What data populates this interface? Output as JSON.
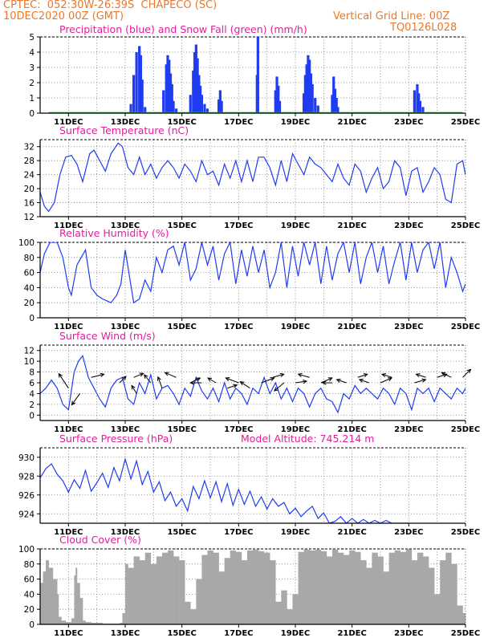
{
  "header": {
    "line1": "CPTEC:  052:30W-26:39S  CHAPECO (SC)",
    "line2": "10DEC2020 00Z (GMT)",
    "grid_note": "Vertical Grid Line: 00Z",
    "code": "TQ0126L028"
  },
  "chart_data": [
    {
      "id": "precip",
      "type": "bar",
      "title": "Precipitation (blue) and Snow Fall (green) (mm/h)",
      "ylim": [
        0,
        5
      ],
      "yticks": [
        0,
        1,
        2,
        3,
        4,
        5
      ],
      "x_tick_labels": [
        "11DEC",
        "13DEC",
        "15DEC",
        "17DEC",
        "19DEC",
        "21DEC",
        "23DEC",
        "25DEC"
      ],
      "x_range_days": [
        10,
        25
      ],
      "grid": "dotted",
      "colors": {
        "precip": "#1f3cf0",
        "snow": "#20c040"
      },
      "series": [
        {
          "name": "Precipitation",
          "x": [
            13.2,
            13.3,
            13.4,
            13.5,
            13.55,
            13.6,
            13.7,
            14.35,
            14.45,
            14.5,
            14.55,
            14.6,
            14.65,
            14.7,
            14.8,
            15.3,
            15.4,
            15.45,
            15.5,
            15.55,
            15.6,
            15.65,
            15.7,
            15.8,
            15.9,
            16.3,
            16.35,
            16.4,
            17.65,
            17.68,
            18.3,
            18.35,
            18.4,
            18.45,
            19.3,
            19.35,
            19.4,
            19.45,
            19.5,
            19.55,
            19.6,
            19.7,
            19.8,
            20.3,
            20.35,
            20.4,
            20.45,
            20.5,
            23.2,
            23.3,
            23.35,
            23.4,
            23.5
          ],
          "values": [
            0.6,
            2.5,
            4.0,
            4.4,
            3.8,
            2.2,
            0.4,
            1.5,
            3.2,
            3.8,
            3.5,
            2.6,
            1.9,
            0.8,
            0.3,
            1.2,
            2.8,
            4.0,
            4.5,
            3.6,
            2.5,
            1.8,
            1.2,
            0.6,
            0.3,
            0.9,
            1.5,
            0.8,
            2.5,
            5.0,
            1.5,
            2.4,
            1.8,
            0.8,
            1.3,
            2.5,
            3.2,
            3.8,
            3.5,
            2.6,
            1.9,
            1.0,
            0.5,
            1.2,
            2.4,
            1.6,
            1.0,
            0.4,
            1.5,
            1.9,
            1.3,
            0.8,
            0.4
          ]
        },
        {
          "name": "Snow Fall",
          "x": [],
          "values": []
        }
      ]
    },
    {
      "id": "temp",
      "type": "line",
      "title": "Surface Temperature (nC)",
      "ylim": [
        12,
        34
      ],
      "yticks": [
        12,
        16,
        20,
        24,
        28,
        32
      ],
      "x_tick_labels": [
        "11DEC",
        "13DEC",
        "15DEC",
        "17DEC",
        "19DEC",
        "21DEC",
        "23DEC",
        "25DEC"
      ],
      "x_range_days": [
        10,
        25
      ],
      "grid": "dotted",
      "color": "#1f3cf0",
      "x": [
        10,
        10.15,
        10.3,
        10.5,
        10.7,
        10.9,
        11.1,
        11.3,
        11.5,
        11.75,
        11.9,
        12.1,
        12.3,
        12.5,
        12.75,
        12.9,
        13.1,
        13.3,
        13.5,
        13.7,
        13.9,
        14.1,
        14.3,
        14.5,
        14.7,
        14.9,
        15.1,
        15.3,
        15.5,
        15.7,
        15.9,
        16.1,
        16.3,
        16.5,
        16.7,
        16.9,
        17.1,
        17.3,
        17.5,
        17.7,
        17.9,
        18.1,
        18.3,
        18.5,
        18.7,
        18.9,
        19.1,
        19.3,
        19.5,
        19.7,
        19.9,
        20.1,
        20.3,
        20.5,
        20.7,
        20.9,
        21.1,
        21.3,
        21.5,
        21.7,
        21.9,
        22.1,
        22.3,
        22.5,
        22.7,
        22.9,
        23.1,
        23.3,
        23.5,
        23.7,
        23.9,
        24.1,
        24.3,
        24.5,
        24.7,
        24.9,
        25
      ],
      "values": [
        19,
        15,
        13.5,
        16,
        24,
        29,
        29.5,
        27,
        22,
        30,
        31,
        28,
        25,
        30,
        33,
        32,
        26,
        24,
        29,
        24,
        27,
        23,
        26,
        28,
        26,
        23,
        27,
        25,
        22,
        28,
        24,
        25,
        21,
        27,
        23,
        28,
        22,
        28,
        22,
        29,
        29,
        26,
        21,
        28,
        22,
        30,
        27,
        24,
        29,
        27,
        26,
        24,
        22,
        27,
        23,
        21,
        27,
        25,
        19,
        23,
        26,
        20,
        22,
        28,
        26,
        18,
        25,
        26,
        19,
        22,
        26,
        24,
        17,
        16,
        27,
        28,
        24
      ]
    },
    {
      "id": "rh",
      "type": "line",
      "title": "Relative Humidity (%)",
      "ylim": [
        0,
        100
      ],
      "yticks": [
        0,
        20,
        40,
        60,
        80,
        100
      ],
      "x_tick_labels": [
        "11DEC",
        "13DEC",
        "15DEC",
        "17DEC",
        "19DEC",
        "21DEC",
        "23DEC",
        "25DEC"
      ],
      "x_range_days": [
        10,
        25
      ],
      "grid": "dotted",
      "color": "#1f3cf0",
      "x": [
        10,
        10.15,
        10.35,
        10.6,
        10.8,
        11.0,
        11.1,
        11.3,
        11.6,
        11.8,
        12.0,
        12.2,
        12.5,
        12.7,
        12.85,
        13.0,
        13.3,
        13.5,
        13.7,
        13.9,
        14.1,
        14.3,
        14.5,
        14.7,
        14.9,
        15.1,
        15.3,
        15.5,
        15.7,
        15.9,
        16.1,
        16.3,
        16.5,
        16.7,
        16.9,
        17.1,
        17.3,
        17.5,
        17.7,
        17.9,
        18.1,
        18.3,
        18.5,
        18.7,
        18.9,
        19.1,
        19.3,
        19.5,
        19.7,
        19.9,
        20.1,
        20.3,
        20.5,
        20.7,
        20.9,
        21.1,
        21.3,
        21.5,
        21.7,
        21.9,
        22.1,
        22.3,
        22.5,
        22.7,
        22.9,
        23.1,
        23.3,
        23.5,
        23.7,
        23.9,
        24.1,
        24.3,
        24.5,
        24.7,
        24.9,
        25
      ],
      "values": [
        60,
        85,
        100,
        100,
        80,
        40,
        30,
        70,
        90,
        40,
        30,
        25,
        20,
        30,
        45,
        90,
        20,
        25,
        50,
        35,
        80,
        60,
        90,
        95,
        70,
        100,
        50,
        65,
        100,
        70,
        95,
        50,
        85,
        100,
        45,
        90,
        55,
        95,
        60,
        90,
        40,
        60,
        100,
        40,
        95,
        55,
        100,
        70,
        100,
        45,
        95,
        50,
        85,
        100,
        60,
        100,
        45,
        80,
        100,
        60,
        95,
        45,
        75,
        100,
        50,
        100,
        60,
        90,
        100,
        65,
        100,
        40,
        80,
        60,
        35,
        45
      ]
    },
    {
      "id": "wind",
      "type": "line",
      "title": "Surface Wind (m/s)",
      "ylim": [
        -1,
        13
      ],
      "yticks": [
        0,
        2,
        4,
        6,
        8,
        10,
        12
      ],
      "x_tick_labels": [
        "11DEC",
        "13DEC",
        "15DEC",
        "17DEC",
        "19DEC",
        "21DEC",
        "23DEC",
        "25DEC"
      ],
      "x_range_days": [
        10,
        25
      ],
      "grid": "dotted",
      "color": "#1f3cf0",
      "x": [
        10,
        10.2,
        10.4,
        10.6,
        10.8,
        11.0,
        11.2,
        11.35,
        11.5,
        11.7,
        11.9,
        12.1,
        12.3,
        12.5,
        12.7,
        12.9,
        13.1,
        13.3,
        13.5,
        13.7,
        13.9,
        14.1,
        14.3,
        14.5,
        14.7,
        14.9,
        15.1,
        15.3,
        15.5,
        15.7,
        15.9,
        16.1,
        16.3,
        16.5,
        16.7,
        16.9,
        17.1,
        17.3,
        17.5,
        17.7,
        17.9,
        18.1,
        18.3,
        18.5,
        18.7,
        18.9,
        19.1,
        19.3,
        19.5,
        19.7,
        19.9,
        20.1,
        20.3,
        20.5,
        20.7,
        20.9,
        21.1,
        21.3,
        21.5,
        21.7,
        21.9,
        22.1,
        22.3,
        22.5,
        22.7,
        22.9,
        23.1,
        23.3,
        23.5,
        23.7,
        23.9,
        24.1,
        24.3,
        24.5,
        24.7,
        24.9,
        25
      ],
      "values": [
        4,
        5,
        6.5,
        5,
        2,
        1,
        8,
        10,
        11,
        7,
        5,
        3,
        1.5,
        5,
        6.5,
        7,
        3,
        2,
        6,
        4,
        7.5,
        3,
        5,
        5.5,
        4,
        2,
        5,
        3.5,
        7,
        4.5,
        3,
        5,
        2.5,
        6,
        3,
        5,
        4,
        2,
        5,
        4,
        7,
        4,
        6,
        3,
        5,
        2.5,
        5,
        4,
        1.5,
        4,
        5,
        3,
        2.5,
        0.5,
        4,
        3,
        5.5,
        4,
        5,
        4,
        3,
        5,
        4,
        2,
        5,
        4,
        1,
        5,
        4,
        5,
        2.5,
        5,
        4,
        3,
        5,
        4,
        5
      ]
    },
    {
      "id": "pressure",
      "type": "line",
      "title": "Surface Pressure (hPa)",
      "subtitle": "Model Altitude: 745.214 m",
      "ylim": [
        923,
        931
      ],
      "yticks": [
        924,
        926,
        928,
        930
      ],
      "x_tick_labels": [
        "11DEC",
        "13DEC",
        "15DEC",
        "17DEC",
        "19DEC",
        "21DEC",
        "23DEC",
        "25DEC"
      ],
      "x_range_days": [
        10,
        25
      ],
      "grid": "dotted",
      "color": "#1f3cf0",
      "x": [
        10,
        10.2,
        10.4,
        10.6,
        10.8,
        11.0,
        11.2,
        11.4,
        11.6,
        11.8,
        12.0,
        12.2,
        12.4,
        12.6,
        12.8,
        13.0,
        13.2,
        13.4,
        13.6,
        13.8,
        14.0,
        14.2,
        14.4,
        14.6,
        14.8,
        15.0,
        15.2,
        15.4,
        15.6,
        15.8,
        16.0,
        16.2,
        16.4,
        16.6,
        16.8,
        17.0,
        17.2,
        17.4,
        17.6,
        17.8,
        18.0,
        18.2,
        18.4,
        18.6,
        18.8,
        19.0,
        19.2,
        19.4,
        19.6,
        19.8,
        20.0,
        20.2,
        20.4,
        20.6,
        20.8,
        21.0,
        21.2,
        21.4,
        21.6,
        21.8,
        22.0,
        22.2,
        22.4,
        22.6,
        22.8,
        23.0
      ],
      "values": [
        927.8,
        928.8,
        929.3,
        928.2,
        927.5,
        926.3,
        927.6,
        926.7,
        928.6,
        926.4,
        927.3,
        928.3,
        926.8,
        928.9,
        927.5,
        929.8,
        927.7,
        929.6,
        927.1,
        928.5,
        926.3,
        927.4,
        925.4,
        926.3,
        924.8,
        925.6,
        924.3,
        926.9,
        925.6,
        927.5,
        925.7,
        927.4,
        925.3,
        927.2,
        924.9,
        926.6,
        925.0,
        926.4,
        924.8,
        925.8,
        924.5,
        925.6,
        924.8,
        925.2,
        924.0,
        924.6,
        923.7,
        924.3,
        924.8,
        923.5,
        924.1,
        922.9,
        923.2,
        923.7,
        922.8,
        923.5,
        922.6,
        923.4,
        922.9,
        923.3,
        922.7,
        923.3,
        922.8,
        922.9,
        922.5,
        922.6
      ]
    },
    {
      "id": "cloud",
      "type": "area",
      "title": "Cloud Cover (%)",
      "ylim": [
        0,
        100
      ],
      "yticks": [
        0,
        20,
        40,
        60,
        80,
        100
      ],
      "x_tick_labels": [
        "11DEC",
        "13DEC",
        "15DEC",
        "17DEC",
        "19DEC",
        "21DEC",
        "23DEC",
        "25DEC"
      ],
      "x_range_days": [
        10,
        25
      ],
      "grid": "dotted",
      "color": "#a8a8a8",
      "x": [
        10,
        10.1,
        10.2,
        10.3,
        10.45,
        10.6,
        10.65,
        10.75,
        10.9,
        11.1,
        11.2,
        11.25,
        11.3,
        11.4,
        11.5,
        11.6,
        11.8,
        12.2,
        12.5,
        12.8,
        12.9,
        13.0,
        13.1,
        13.3,
        13.5,
        13.7,
        13.9,
        14.1,
        14.3,
        14.5,
        14.7,
        14.9,
        15.1,
        15.3,
        15.5,
        15.7,
        15.9,
        16.1,
        16.3,
        16.5,
        16.7,
        16.9,
        17.1,
        17.3,
        17.5,
        17.7,
        17.9,
        18.1,
        18.3,
        18.5,
        18.7,
        18.9,
        19.1,
        19.3,
        19.5,
        19.7,
        19.9,
        20.1,
        20.3,
        20.5,
        20.7,
        20.9,
        21.1,
        21.3,
        21.5,
        21.7,
        21.9,
        22.1,
        22.3,
        22.5,
        22.7,
        22.9,
        23.1,
        23.3,
        23.5,
        23.7,
        23.9,
        24.1,
        24.3,
        24.5,
        24.7,
        24.9,
        25
      ],
      "values": [
        55,
        70,
        85,
        75,
        60,
        40,
        10,
        5,
        3,
        8,
        65,
        75,
        55,
        35,
        5,
        3,
        2,
        1,
        1,
        2,
        15,
        80,
        75,
        90,
        85,
        95,
        80,
        90,
        95,
        98,
        90,
        85,
        30,
        20,
        60,
        92,
        98,
        95,
        70,
        88,
        98,
        96,
        85,
        98,
        99,
        97,
        95,
        85,
        30,
        45,
        20,
        40,
        96,
        99,
        98,
        99,
        97,
        90,
        99,
        95,
        92,
        98,
        96,
        85,
        75,
        95,
        90,
        70,
        95,
        98,
        96,
        99,
        85,
        95,
        90,
        75,
        40,
        85,
        95,
        80,
        25,
        15,
        20
      ]
    }
  ]
}
